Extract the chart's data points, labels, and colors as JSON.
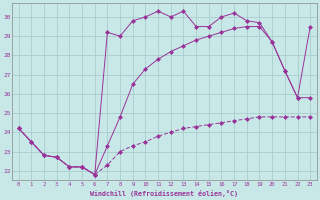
{
  "xlabel": "Windchill (Refroidissement éolien,°C)",
  "xlim": [
    -0.5,
    23.5
  ],
  "ylim": [
    21.5,
    30.7
  ],
  "yticks": [
    22,
    23,
    24,
    25,
    26,
    27,
    28,
    29,
    30
  ],
  "xticks": [
    0,
    1,
    2,
    3,
    4,
    5,
    6,
    7,
    8,
    9,
    10,
    11,
    12,
    13,
    14,
    15,
    16,
    17,
    18,
    19,
    20,
    21,
    22,
    23
  ],
  "bg_color": "#c8e8e8",
  "grid_color": "#aacccc",
  "line_color": "#993399",
  "line1_x": [
    0,
    1,
    2,
    3,
    4,
    5,
    6,
    7,
    8,
    9,
    10,
    11,
    12,
    13,
    14,
    15,
    16,
    17,
    18,
    19,
    20,
    21,
    22,
    23
  ],
  "line1_y": [
    24.2,
    23.5,
    22.8,
    22.7,
    22.2,
    22.2,
    21.8,
    29.2,
    29.0,
    29.8,
    30.0,
    30.3,
    30.0,
    30.3,
    29.5,
    29.5,
    30.0,
    30.2,
    29.8,
    29.7,
    28.7,
    27.2,
    25.8,
    29.5
  ],
  "line2_x": [
    0,
    1,
    2,
    3,
    4,
    5,
    6,
    7,
    8,
    9,
    10,
    11,
    12,
    13,
    14,
    15,
    16,
    17,
    18,
    19,
    20,
    21,
    22,
    23
  ],
  "line2_y": [
    24.2,
    23.5,
    22.8,
    22.7,
    22.2,
    22.2,
    21.8,
    22.3,
    23.0,
    23.3,
    23.5,
    23.8,
    24.0,
    24.2,
    24.3,
    24.4,
    24.5,
    24.6,
    24.7,
    24.8,
    24.8,
    24.8,
    24.8,
    24.8
  ],
  "line3_x": [
    0,
    1,
    2,
    3,
    4,
    5,
    6,
    7,
    8,
    9,
    10,
    11,
    12,
    13,
    14,
    15,
    16,
    17,
    18,
    19,
    20,
    21,
    22,
    23
  ],
  "line3_y": [
    24.2,
    23.5,
    22.8,
    22.7,
    22.2,
    22.2,
    21.8,
    23.3,
    24.8,
    26.5,
    27.3,
    27.8,
    28.2,
    28.5,
    28.8,
    29.0,
    29.2,
    29.4,
    29.5,
    29.5,
    28.7,
    27.2,
    25.8,
    25.8
  ]
}
